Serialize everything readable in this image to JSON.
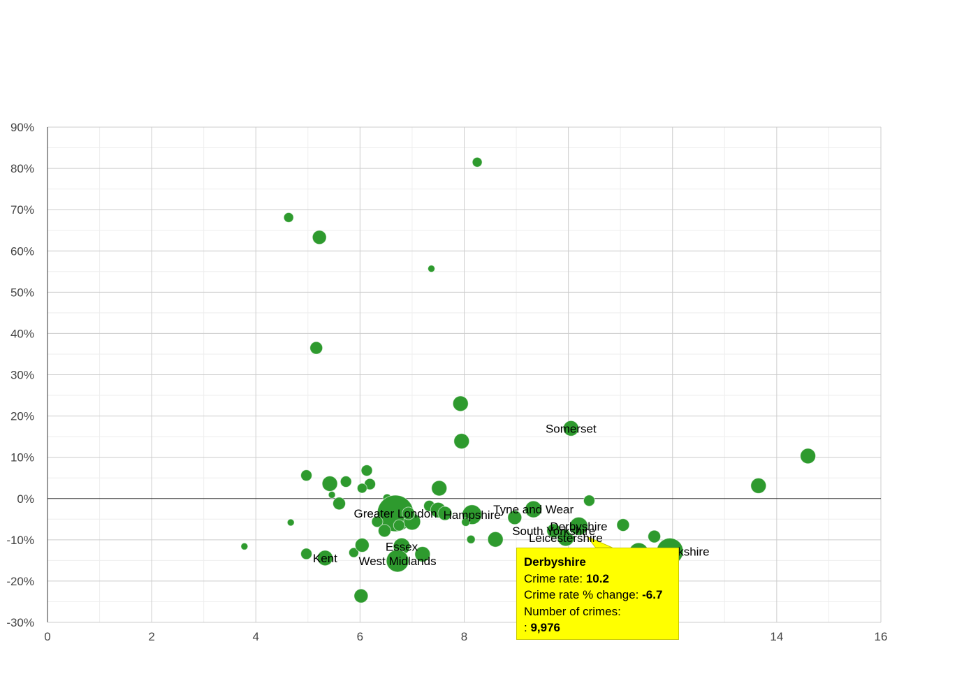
{
  "chart_data": {
    "type": "scatter",
    "title": "",
    "xlabel": "",
    "ylabel": "",
    "xlim": [
      0,
      16
    ],
    "ylim": [
      -30,
      90
    ],
    "x_ticks": [
      0,
      2,
      4,
      6,
      8,
      14,
      16
    ],
    "y_ticks": [
      -30,
      -20,
      -10,
      0,
      10,
      20,
      30,
      40,
      50,
      60,
      70,
      80,
      90
    ],
    "y_tick_suffix": "%",
    "grid": true,
    "legend": "none",
    "color": "#2e9a2e",
    "points": [
      {
        "x": 8.25,
        "y": 81.5,
        "r": 7
      },
      {
        "x": 4.63,
        "y": 68.1,
        "r": 7
      },
      {
        "x": 5.22,
        "y": 63.3,
        "r": 10
      },
      {
        "x": 7.37,
        "y": 55.7,
        "r": 5
      },
      {
        "x": 5.16,
        "y": 36.5,
        "r": 9
      },
      {
        "x": 7.93,
        "y": 23.0,
        "r": 11
      },
      {
        "x": 7.95,
        "y": 13.9,
        "r": 11
      },
      {
        "x": 10.05,
        "y": 17.0,
        "r": 11,
        "label": "Somerset"
      },
      {
        "x": 14.6,
        "y": 10.3,
        "r": 11
      },
      {
        "x": 13.65,
        "y": 3.1,
        "r": 11
      },
      {
        "x": 4.97,
        "y": 5.6,
        "r": 8
      },
      {
        "x": 5.42,
        "y": 3.6,
        "r": 11
      },
      {
        "x": 5.73,
        "y": 4.1,
        "r": 8
      },
      {
        "x": 6.13,
        "y": 6.8,
        "r": 8
      },
      {
        "x": 6.19,
        "y": 3.5,
        "r": 8
      },
      {
        "x": 6.04,
        "y": 2.5,
        "r": 7
      },
      {
        "x": 5.46,
        "y": 0.9,
        "r": 5
      },
      {
        "x": 5.6,
        "y": -1.2,
        "r": 9
      },
      {
        "x": 7.52,
        "y": 2.5,
        "r": 11
      },
      {
        "x": 6.52,
        "y": 0.1,
        "r": 6
      },
      {
        "x": 6.68,
        "y": -3.6,
        "r": 26,
        "label": "Greater London"
      },
      {
        "x": 7.0,
        "y": -5.6,
        "r": 12
      },
      {
        "x": 6.93,
        "y": -3.6,
        "r": 9
      },
      {
        "x": 7.33,
        "y": -1.8,
        "r": 8
      },
      {
        "x": 7.5,
        "y": -2.8,
        "r": 11
      },
      {
        "x": 7.63,
        "y": -3.6,
        "r": 10
      },
      {
        "x": 8.15,
        "y": -3.9,
        "r": 14,
        "label": "Hampshire"
      },
      {
        "x": 8.03,
        "y": -5.7,
        "r": 6
      },
      {
        "x": 6.33,
        "y": -5.6,
        "r": 8
      },
      {
        "x": 6.47,
        "y": -7.8,
        "r": 9
      },
      {
        "x": 6.75,
        "y": -6.5,
        "r": 8
      },
      {
        "x": 8.13,
        "y": -9.9,
        "r": 6
      },
      {
        "x": 8.6,
        "y": -9.9,
        "r": 11
      },
      {
        "x": 8.97,
        "y": -4.6,
        "r": 10
      },
      {
        "x": 9.33,
        "y": -2.6,
        "r": 12,
        "label": "Tyne and Wear"
      },
      {
        "x": 10.4,
        "y": -0.5,
        "r": 8
      },
      {
        "x": 10.2,
        "y": -6.7,
        "r": 13,
        "label": "Derbyshire"
      },
      {
        "x": 9.72,
        "y": -7.8,
        "r": 10,
        "label": "South Yorkshire"
      },
      {
        "x": 9.95,
        "y": -9.5,
        "r": 12,
        "label": "Leicestershire"
      },
      {
        "x": 11.05,
        "y": -6.4,
        "r": 9
      },
      {
        "x": 11.65,
        "y": -9.2,
        "r": 9
      },
      {
        "x": 11.35,
        "y": -13.1,
        "r": 14
      },
      {
        "x": 11.95,
        "y": -12.8,
        "r": 19,
        "label": "West Yorkshire"
      },
      {
        "x": 4.67,
        "y": -5.8,
        "r": 5
      },
      {
        "x": 3.78,
        "y": -11.6,
        "r": 5
      },
      {
        "x": 4.97,
        "y": -13.4,
        "r": 8
      },
      {
        "x": 5.33,
        "y": -14.4,
        "r": 11,
        "label": "Kent"
      },
      {
        "x": 5.88,
        "y": -13.1,
        "r": 7
      },
      {
        "x": 6.04,
        "y": -11.3,
        "r": 10
      },
      {
        "x": 6.8,
        "y": -11.6,
        "r": 12,
        "label": "Essex"
      },
      {
        "x": 6.72,
        "y": -15.1,
        "r": 16,
        "label": "West Midlands"
      },
      {
        "x": 7.2,
        "y": -13.5,
        "r": 11
      },
      {
        "x": 6.02,
        "y": -23.6,
        "r": 10
      }
    ],
    "tooltip": {
      "title": "Derbyshire",
      "rate_label": "Crime rate:",
      "rate_value": "10.2",
      "change_label": "Crime rate % change:",
      "change_value": "-6.7",
      "count_label": "Number of crimes:",
      "count_prefix": ":",
      "count_value": "9,976"
    }
  }
}
